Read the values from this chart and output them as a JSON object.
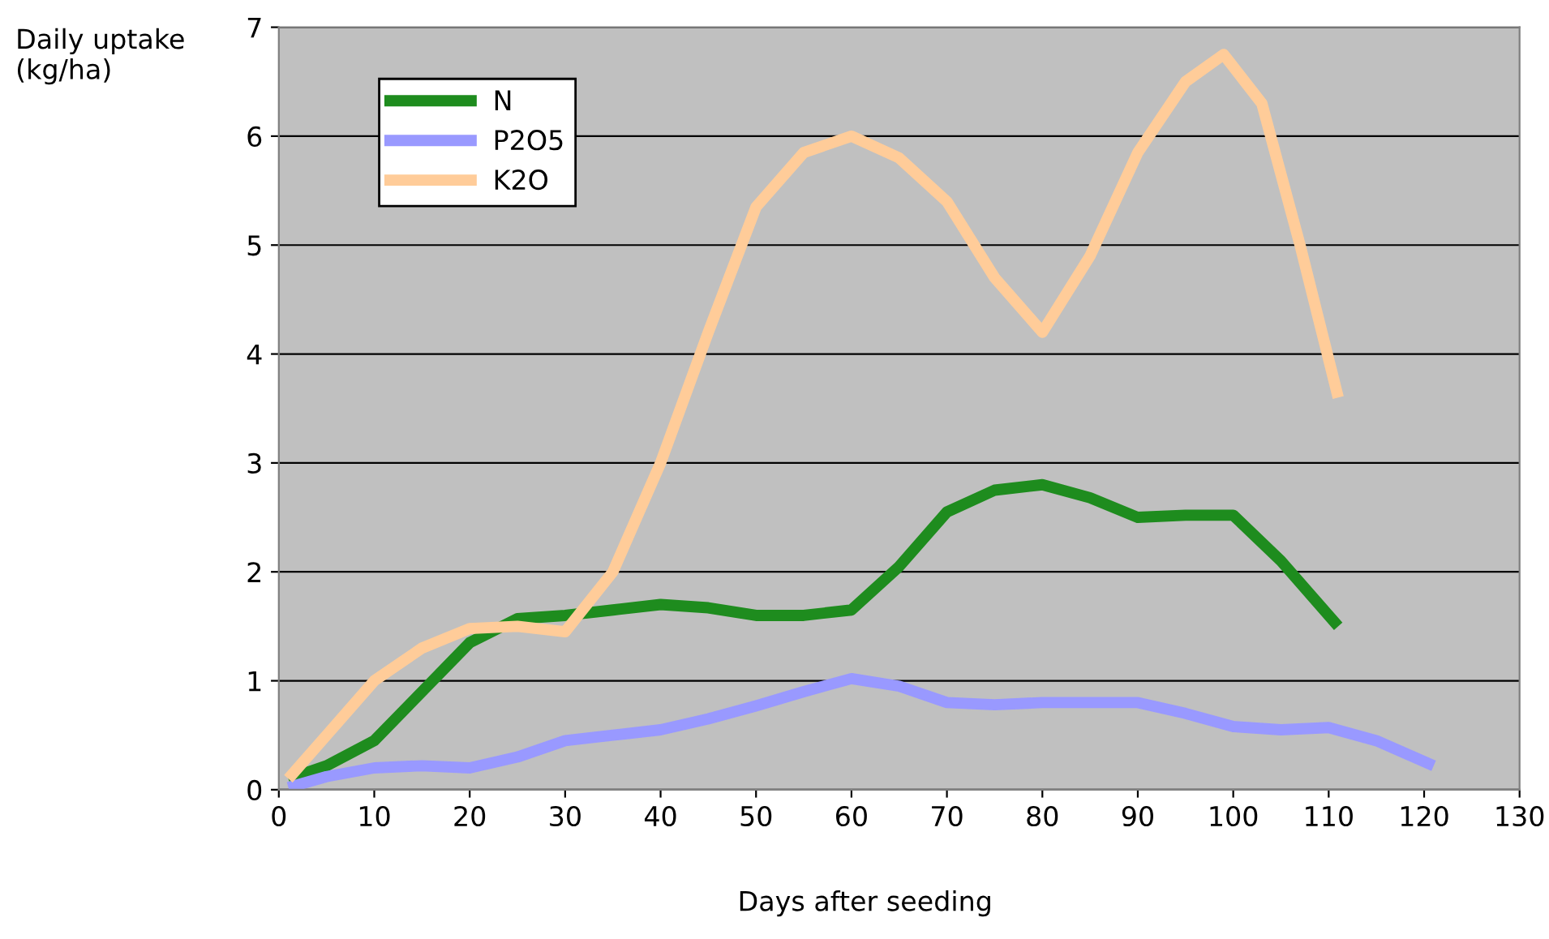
{
  "chart_data": {
    "type": "line",
    "xlabel": "Days after seeding",
    "ylabel": "Daily uptake\n(kg/ha)",
    "series": [
      {
        "name": "N",
        "color": "#1e8c1e",
        "x": [
          1,
          5,
          10,
          15,
          20,
          25,
          30,
          35,
          40,
          45,
          50,
          55,
          60,
          65,
          70,
          75,
          80,
          85,
          90,
          95,
          100,
          105,
          111
        ],
        "values": [
          0.1,
          0.22,
          0.45,
          0.9,
          1.35,
          1.57,
          1.6,
          1.65,
          1.7,
          1.67,
          1.6,
          1.6,
          1.65,
          2.05,
          2.55,
          2.75,
          2.8,
          2.68,
          2.5,
          2.52,
          2.52,
          2.1,
          1.5
        ]
      },
      {
        "name": "P2O5",
        "color": "#9999ff",
        "x": [
          1,
          5,
          10,
          15,
          20,
          25,
          30,
          35,
          40,
          45,
          50,
          55,
          60,
          65,
          70,
          75,
          80,
          85,
          90,
          95,
          100,
          105,
          110,
          115,
          121
        ],
        "values": [
          0.02,
          0.12,
          0.2,
          0.22,
          0.2,
          0.3,
          0.45,
          0.5,
          0.55,
          0.65,
          0.77,
          0.9,
          1.02,
          0.95,
          0.8,
          0.78,
          0.8,
          0.8,
          0.8,
          0.7,
          0.58,
          0.55,
          0.57,
          0.45,
          0.22
        ]
      },
      {
        "name": "K2O",
        "color": "#ffcc99",
        "x": [
          1,
          5,
          10,
          15,
          20,
          25,
          30,
          35,
          40,
          45,
          50,
          55,
          60,
          65,
          70,
          75,
          80,
          85,
          90,
          95,
          99,
          103,
          107,
          111
        ],
        "values": [
          0.1,
          0.5,
          1.0,
          1.3,
          1.48,
          1.5,
          1.45,
          2.0,
          3.0,
          4.2,
          5.35,
          5.85,
          6.0,
          5.8,
          5.4,
          4.7,
          4.2,
          4.9,
          5.85,
          6.5,
          6.75,
          6.3,
          5.0,
          3.6
        ]
      }
    ],
    "xlim": [
      0,
      130
    ],
    "xticks": [
      0,
      10,
      20,
      30,
      40,
      50,
      60,
      70,
      80,
      90,
      100,
      110,
      120,
      130
    ],
    "ylim": [
      0,
      7
    ],
    "yticks": [
      0,
      1,
      2,
      3,
      4,
      5,
      6,
      7
    ],
    "grid": "y",
    "legend": "top left",
    "marker": "none",
    "line_style": "solid"
  }
}
